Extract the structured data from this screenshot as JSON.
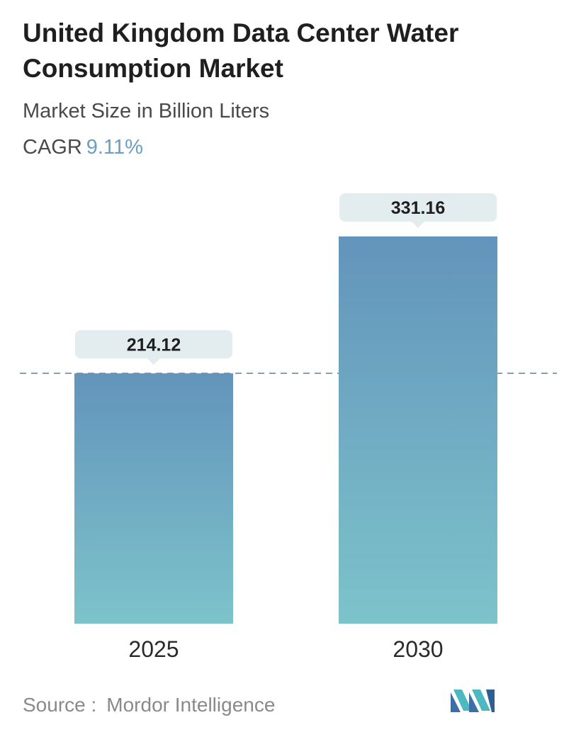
{
  "header": {
    "title": "United Kingdom Data Center Water Consumption Market",
    "subtitle": "Market Size in Billion Liters",
    "cagr_label": "CAGR",
    "cagr_value": "9.11%"
  },
  "footer": {
    "source_label": "Source :",
    "source_name": "Mordor Intelligence",
    "logo_icon": "mordor-intelligence-logo-icon"
  },
  "colors": {
    "bar_top": "#6394bb",
    "bar_bottom": "#7dc3cb",
    "label_bg": "#e3ecee",
    "dashed_line": "#5e8aa6",
    "cagr_accent": "#6a9ec2"
  },
  "chart_data": {
    "type": "bar",
    "categories": [
      "2025",
      "2030"
    ],
    "values": [
      214.12,
      331.16
    ],
    "value_labels": [
      "214.12",
      "331.16"
    ],
    "title": "United Kingdom Data Center Water Consumption Market",
    "subtitle": "Market Size in Billion Liters",
    "xlabel": "",
    "ylabel": "",
    "ylim": [
      0,
      331.16
    ],
    "grid": false,
    "reference_line": "dashed line at first bar value",
    "legend": "none"
  }
}
